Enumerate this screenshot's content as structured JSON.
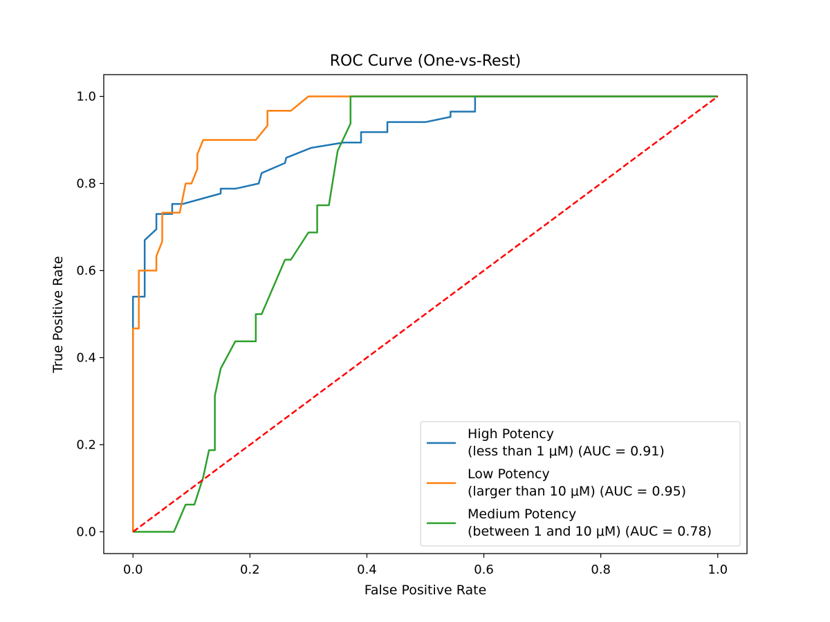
{
  "chart_data": {
    "type": "line",
    "title": "ROC Curve (One-vs-Rest)",
    "xlabel": "False Positive Rate",
    "ylabel": "True Positive Rate",
    "xlim": [
      -0.05,
      1.05
    ],
    "ylim": [
      -0.05,
      1.05
    ],
    "xticks": [
      "0.0",
      "0.2",
      "0.4",
      "0.6",
      "0.8",
      "1.0"
    ],
    "yticks": [
      "0.0",
      "0.2",
      "0.4",
      "0.6",
      "0.8",
      "1.0"
    ],
    "grid": false,
    "legend_position": "lower-right",
    "series": [
      {
        "name_line1": "High Potency",
        "name_line2": "(less than 1 μM) (AUC = 0.91)",
        "color": "#1f77b4",
        "x": [
          0,
          0,
          0,
          0.02,
          0.02,
          0.04,
          0.04,
          0.047,
          0.047,
          0.067,
          0.067,
          0.085,
          0.15,
          0.15,
          0.175,
          0.175,
          0.215,
          0.22,
          0.26,
          0.262,
          0.305,
          0.36,
          0.39,
          0.39,
          0.435,
          0.435,
          0.5,
          0.543,
          0.543,
          0.585,
          0.585,
          1.0
        ],
        "y": [
          0,
          0.47,
          0.54,
          0.54,
          0.67,
          0.695,
          0.73,
          0.73,
          0.73,
          0.73,
          0.753,
          0.753,
          0.777,
          0.788,
          0.788,
          0.788,
          0.8,
          0.824,
          0.847,
          0.859,
          0.882,
          0.894,
          0.894,
          0.918,
          0.918,
          0.941,
          0.941,
          0.953,
          0.965,
          0.965,
          1.0,
          1.0
        ]
      },
      {
        "name_line1": "Low Potency",
        "name_line2": "(larger than 10 μM) (AUC = 0.95)",
        "color": "#ff7f0e",
        "x": [
          0,
          0,
          0.01,
          0.01,
          0.04,
          0.04,
          0.05,
          0.05,
          0.08,
          0.09,
          0.1,
          0.11,
          0.11,
          0.12,
          0.21,
          0.23,
          0.23,
          0.27,
          0.3,
          0.375,
          1.0
        ],
        "y": [
          0,
          0.467,
          0.467,
          0.6,
          0.6,
          0.633,
          0.667,
          0.733,
          0.733,
          0.8,
          0.8,
          0.833,
          0.867,
          0.9,
          0.9,
          0.933,
          0.967,
          0.967,
          1.0,
          1.0,
          1.0
        ]
      },
      {
        "name_line1": "Medium Potency",
        "name_line2": "(between 1 and 10 μM) (AUC = 0.78)",
        "color": "#2ca02c",
        "x": [
          0,
          0.07,
          0.09,
          0.105,
          0.12,
          0.13,
          0.14,
          0.14,
          0.15,
          0.175,
          0.21,
          0.21,
          0.22,
          0.26,
          0.27,
          0.3,
          0.315,
          0.315,
          0.335,
          0.35,
          0.372,
          0.372,
          0.375,
          1.0
        ],
        "y": [
          0,
          0,
          0.0625,
          0.0625,
          0.125,
          0.1875,
          0.1875,
          0.3125,
          0.375,
          0.4375,
          0.4375,
          0.5,
          0.5,
          0.625,
          0.625,
          0.6875,
          0.6875,
          0.75,
          0.75,
          0.875,
          0.9375,
          1.0,
          1.0,
          1.0
        ]
      },
      {
        "role": "chance-line",
        "color": "#ff0000",
        "x": [
          0,
          1
        ],
        "y": [
          0,
          1
        ]
      }
    ]
  }
}
